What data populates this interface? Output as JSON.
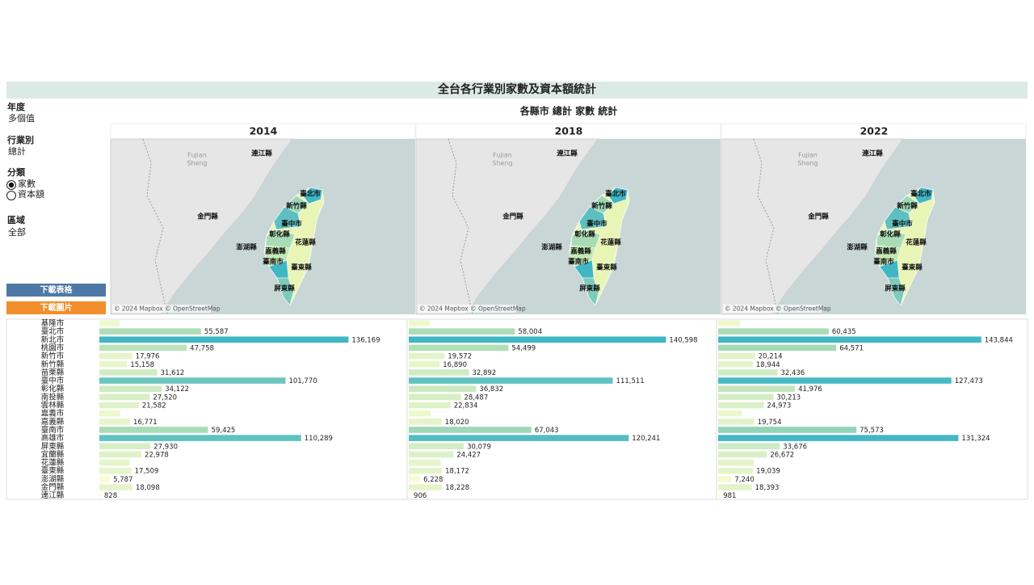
{
  "header": {
    "title": "全台各行業別家數及資本額統計"
  },
  "filters": [
    {
      "label": "年度",
      "value": "多個值"
    },
    {
      "label": "行業別",
      "value": "總計"
    },
    {
      "label": "分類",
      "options": [
        "家數",
        "資本額"
      ],
      "selected": 0
    },
    {
      "label": "區域",
      "value": "全部"
    }
  ],
  "buttons": [
    "下載表格",
    "下載圖片"
  ],
  "map": {
    "region_label_lines": [
      "Fujian",
      "Sheng"
    ],
    "labels": [
      "連江縣",
      "臺北市",
      "新竹縣",
      "金門縣",
      "臺中市",
      "彰化縣",
      "花蓮縣",
      "澎湖縣",
      "嘉義縣",
      "臺南市",
      "臺東縣",
      "屏東縣"
    ],
    "attribution": "© 2024 Mapbox © OpenStreetMap"
  },
  "chart_data": {
    "type": "bar",
    "orientation": "horizontal",
    "title": "各縣市 總計 家數 統計",
    "categories": [
      "基隆市",
      "臺北市",
      "新北市",
      "桃園市",
      "新竹市",
      "新竹縣",
      "苗栗縣",
      "臺中市",
      "彰化縣",
      "南投縣",
      "雲林縣",
      "嘉義市",
      "嘉義縣",
      "臺南市",
      "高雄市",
      "屏東縣",
      "宜蘭縣",
      "花蓮縣",
      "臺東縣",
      "澎湖縣",
      "金門縣",
      "連江縣"
    ],
    "series": [
      {
        "name": "2014",
        "values": [
          11000,
          55587,
          136169,
          47758,
          17976,
          15158,
          31612,
          101770,
          34122,
          27520,
          21582,
          11500,
          16771,
          59425,
          110289,
          27930,
          22978,
          16500,
          17509,
          5787,
          18098,
          828
        ],
        "value_labels": [
          null,
          "55,587",
          "136,169",
          "47,758",
          "17,976",
          "15,158",
          "31,612",
          "101,770",
          "34,122",
          "27,520",
          "21,582",
          null,
          "16,771",
          "59,425",
          "110,289",
          "27,930",
          "22,978",
          null,
          "17,509",
          "5,787",
          "18,098",
          "828"
        ]
      },
      {
        "name": "2018",
        "values": [
          11500,
          58004,
          140598,
          54499,
          19572,
          16890,
          32892,
          111511,
          36832,
          28487,
          22834,
          12000,
          18020,
          67043,
          120241,
          30079,
          24427,
          17500,
          18172,
          6228,
          18228,
          906
        ],
        "value_labels": [
          null,
          "58,004",
          "140,598",
          "54,499",
          "19,572",
          "16,890",
          "32,892",
          "111,511",
          "36,832",
          "28,487",
          "22,834",
          null,
          "18,020",
          "67,043",
          "120,241",
          "30,079",
          "24,427",
          null,
          "18,172",
          "6,228",
          "18,228",
          "906"
        ]
      },
      {
        "name": "2022",
        "values": [
          12000,
          60435,
          143844,
          64571,
          20214,
          18944,
          32436,
          127473,
          41976,
          30213,
          24973,
          13000,
          19754,
          75573,
          131324,
          33676,
          26672,
          19500,
          19039,
          7240,
          18393,
          981
        ],
        "value_labels": [
          null,
          "60,435",
          "143,844",
          "64,571",
          "20,214",
          "18,944",
          "32,436",
          "127,473",
          "41,976",
          "30,213",
          "24,973",
          null,
          "19,754",
          "75,573",
          "131,324",
          "33,676",
          "26,672",
          null,
          "19,039",
          "7,240",
          "18,393",
          "981"
        ]
      }
    ],
    "xlim": [
      0,
      170000
    ],
    "colors": [
      "#ffffd4",
      "#a9dcb5",
      "#41b6c4"
    ]
  }
}
